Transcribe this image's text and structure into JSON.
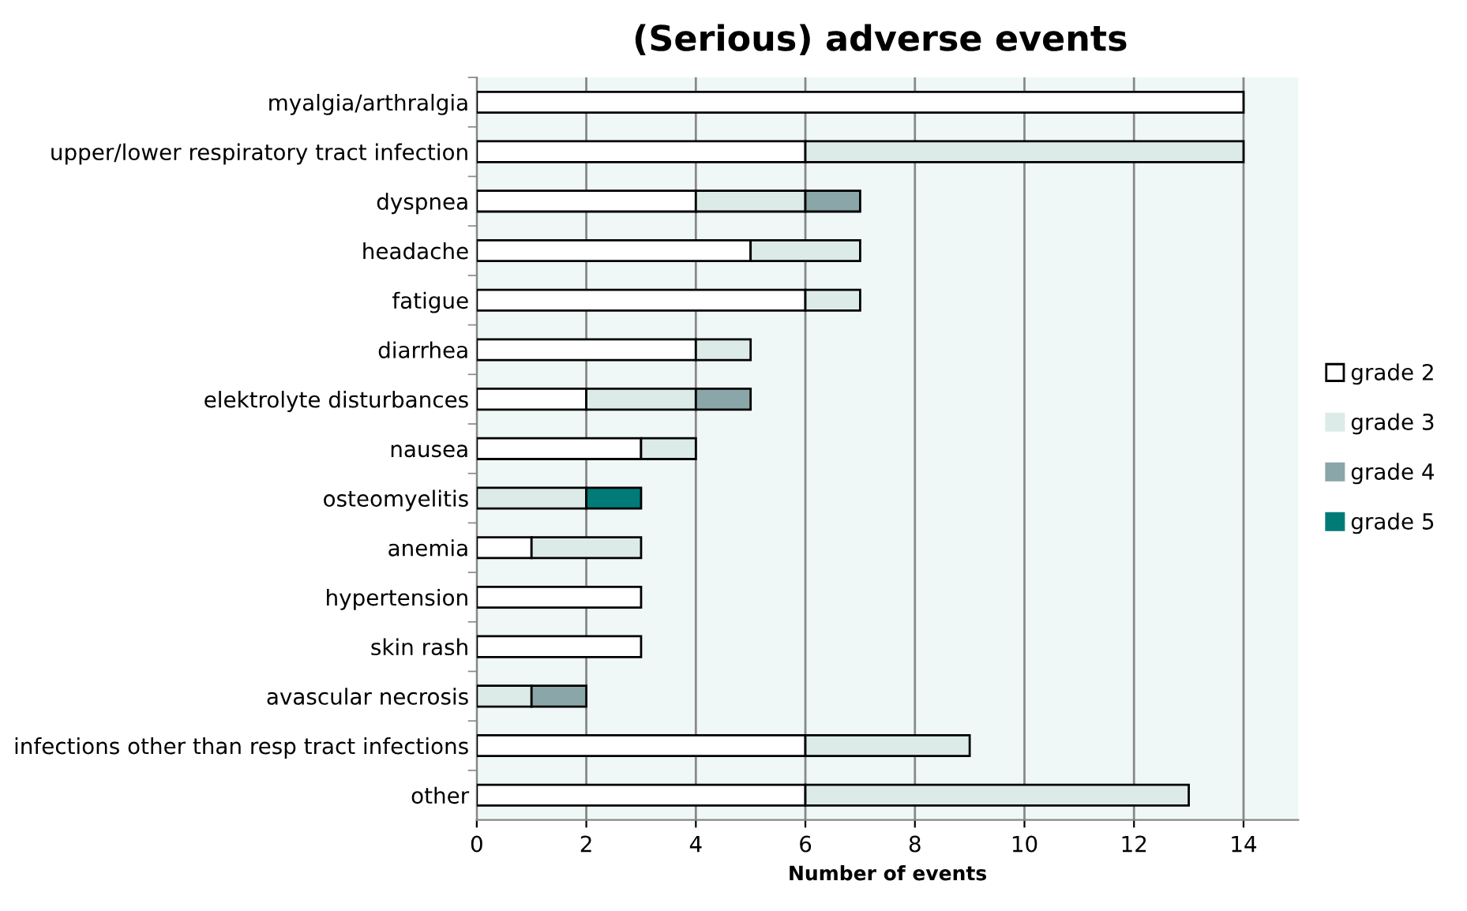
{
  "chart_data": {
    "type": "bar",
    "orientation": "horizontal",
    "stacked": true,
    "title": "(Serious) adverse events",
    "xlabel": "Number of events",
    "categories": [
      "myalgia/arthralgia",
      "upper/lower respiratory tract infection",
      "dyspnea",
      "headache",
      "fatigue",
      "diarrhea",
      "elektrolyte disturbances",
      "nausea",
      "osteomyelitis",
      "anemia",
      "hypertension",
      "skin rash",
      "avascular necrosis",
      "infections other than resp tract infections",
      "other"
    ],
    "series": [
      {
        "name": "grade 2",
        "color": "#ffffff",
        "values": [
          14,
          6,
          4,
          5,
          6,
          4,
          2,
          3,
          0,
          1,
          3,
          3,
          0,
          6,
          6
        ]
      },
      {
        "name": "grade 3",
        "color": "#dcebe8",
        "values": [
          0,
          8,
          2,
          2,
          1,
          1,
          2,
          1,
          2,
          2,
          0,
          0,
          1,
          3,
          7
        ]
      },
      {
        "name": "grade 4",
        "color": "#8aa6a8",
        "values": [
          0,
          0,
          1,
          0,
          0,
          0,
          1,
          0,
          0,
          0,
          0,
          0,
          1,
          0,
          0
        ]
      },
      {
        "name": "grade 5",
        "color": "#007b77",
        "values": [
          0,
          0,
          0,
          0,
          0,
          0,
          0,
          0,
          1,
          0,
          0,
          0,
          0,
          0,
          0
        ]
      }
    ],
    "xlim": [
      0,
      15
    ],
    "xticks": [
      0,
      2,
      4,
      6,
      8,
      10,
      12,
      14
    ],
    "grid": "x",
    "legend": "right"
  }
}
